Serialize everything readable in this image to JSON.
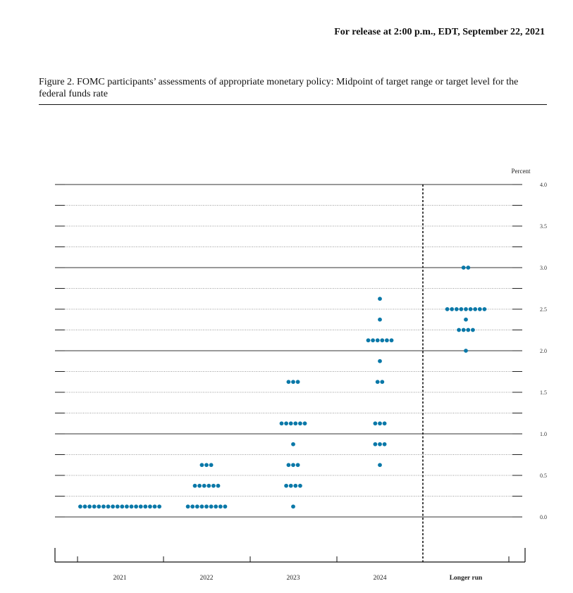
{
  "header": {
    "release_text": "For release at 2:00 p.m., EDT, September 22, 2021",
    "figure_title": "Figure 2.  FOMC participants’ assessments of appropriate monetary policy: Midpoint of target range or target level for the federal funds rate"
  },
  "chart_data": {
    "type": "scatter",
    "title": "",
    "ylabel": "Percent",
    "xlabel": "",
    "ylim": [
      0,
      4.0
    ],
    "y_ticks": [
      0,
      0.25,
      0.5,
      0.75,
      1.0,
      1.25,
      1.5,
      1.75,
      2.0,
      2.25,
      2.5,
      2.75,
      3.0,
      3.25,
      3.5,
      3.75,
      4.0
    ],
    "y_tick_labels": [
      {
        "value": 0,
        "label": "0.0"
      },
      {
        "value": 0.5,
        "label": "0.5"
      },
      {
        "value": 1.0,
        "label": "1.0"
      },
      {
        "value": 1.5,
        "label": "1.5"
      },
      {
        "value": 2.0,
        "label": "2.0"
      },
      {
        "value": 2.5,
        "label": "2.5"
      },
      {
        "value": 3.0,
        "label": "3.0"
      },
      {
        "value": 3.5,
        "label": "3.5"
      },
      {
        "value": 4.0,
        "label": "4.0"
      }
    ],
    "categories": [
      "2021",
      "2022",
      "2023",
      "2024",
      "Longer run"
    ],
    "dot_color": "#0a78a8",
    "grid": true,
    "divider_before": "Longer run",
    "dots": [
      {
        "category": "2021",
        "counts": [
          {
            "y": 0.125,
            "n": 18
          }
        ]
      },
      {
        "category": "2022",
        "counts": [
          {
            "y": 0.125,
            "n": 9
          },
          {
            "y": 0.375,
            "n": 6
          },
          {
            "y": 0.625,
            "n": 3
          }
        ]
      },
      {
        "category": "2023",
        "counts": [
          {
            "y": 0.125,
            "n": 1
          },
          {
            "y": 0.375,
            "n": 4
          },
          {
            "y": 0.625,
            "n": 3
          },
          {
            "y": 0.875,
            "n": 1
          },
          {
            "y": 1.125,
            "n": 6
          },
          {
            "y": 1.625,
            "n": 3
          }
        ]
      },
      {
        "category": "2024",
        "counts": [
          {
            "y": 0.625,
            "n": 1
          },
          {
            "y": 0.875,
            "n": 3
          },
          {
            "y": 1.125,
            "n": 3
          },
          {
            "y": 1.625,
            "n": 2
          },
          {
            "y": 1.875,
            "n": 1
          },
          {
            "y": 2.125,
            "n": 6
          },
          {
            "y": 2.375,
            "n": 1
          },
          {
            "y": 2.625,
            "n": 1
          }
        ]
      },
      {
        "category": "Longer run",
        "counts": [
          {
            "y": 2.0,
            "n": 1
          },
          {
            "y": 2.25,
            "n": 4
          },
          {
            "y": 2.375,
            "n": 1
          },
          {
            "y": 2.5,
            "n": 9
          },
          {
            "y": 3.0,
            "n": 2
          }
        ]
      }
    ]
  }
}
